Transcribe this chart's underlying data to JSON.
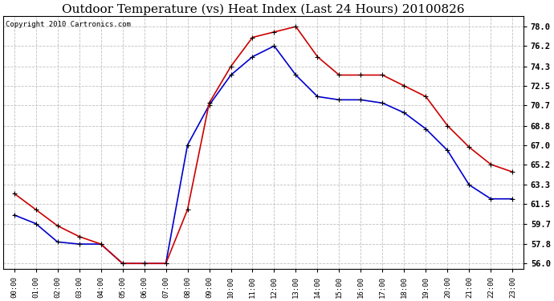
{
  "title": "Outdoor Temperature (vs) Heat Index (Last 24 Hours) 20100826",
  "copyright": "Copyright 2010 Cartronics.com",
  "hours": [
    "00:00",
    "01:00",
    "02:00",
    "03:00",
    "04:00",
    "05:00",
    "06:00",
    "07:00",
    "08:00",
    "09:00",
    "10:00",
    "11:00",
    "12:00",
    "13:00",
    "14:00",
    "15:00",
    "16:00",
    "17:00",
    "18:00",
    "19:00",
    "20:00",
    "21:00",
    "22:00",
    "23:00"
  ],
  "temp_blue": [
    60.5,
    59.7,
    58.0,
    57.8,
    57.8,
    56.0,
    56.0,
    56.0,
    67.0,
    70.7,
    73.5,
    75.2,
    76.2,
    73.5,
    71.5,
    71.2,
    71.2,
    70.9,
    70.0,
    68.5,
    66.5,
    63.3,
    62.0,
    62.0
  ],
  "heat_red": [
    62.5,
    61.0,
    59.5,
    58.5,
    57.8,
    56.0,
    56.0,
    56.0,
    61.0,
    70.9,
    74.3,
    77.0,
    77.5,
    78.0,
    75.2,
    73.5,
    73.5,
    73.5,
    72.5,
    71.5,
    68.8,
    66.8,
    65.2,
    64.5
  ],
  "ylim": [
    55.5,
    79.0
  ],
  "yticks": [
    56.0,
    57.8,
    59.7,
    61.5,
    63.3,
    65.2,
    67.0,
    68.8,
    70.7,
    72.5,
    74.3,
    76.2,
    78.0
  ],
  "line_color_blue": "#0000cc",
  "line_color_red": "#cc0000",
  "marker_color": "#000000",
  "bg_color": "#ffffff",
  "grid_color": "#c0c0c0",
  "title_fontsize": 11,
  "copyright_fontsize": 6.5,
  "tick_fontsize": 7.5,
  "xtick_fontsize": 6.5
}
